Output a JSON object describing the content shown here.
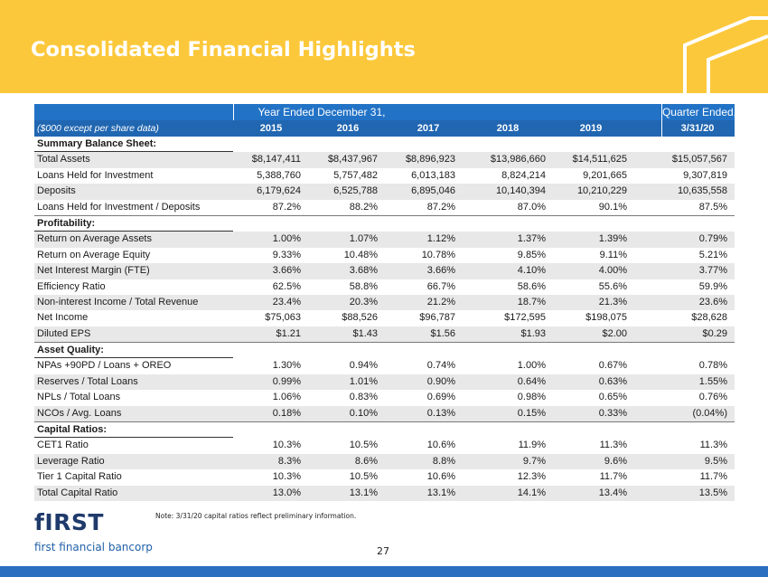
{
  "title": "Consolidated Financial Highlights",
  "table": {
    "group_headers": {
      "years": "Year Ended December 31,",
      "quarter": "Quarter Ended,"
    },
    "subheader": "($000 except per share data)",
    "columns": [
      "2015",
      "2016",
      "2017",
      "2018",
      "2019",
      "3/31/20"
    ],
    "rows": [
      {
        "label": "Summary Balance Sheet:",
        "section": true
      },
      {
        "label": "Total Assets",
        "values": [
          "$8,147,411",
          "$8,437,967",
          "$8,896,923",
          "$13,986,660",
          "$14,511,625",
          "$15,057,567"
        ]
      },
      {
        "label": "Loans Held for Investment",
        "values": [
          "5,388,760",
          "5,757,482",
          "6,013,183",
          "8,824,214",
          "9,201,665",
          "9,307,819"
        ]
      },
      {
        "label": "Deposits",
        "values": [
          "6,179,624",
          "6,525,788",
          "6,895,046",
          "10,140,394",
          "10,210,229",
          "10,635,558"
        ]
      },
      {
        "label": "Loans Held for Investment / Deposits",
        "values": [
          "87.2%",
          "88.2%",
          "87.2%",
          "87.0%",
          "90.1%",
          "87.5%"
        ]
      },
      {
        "label": "Profitability:",
        "section": true
      },
      {
        "label": "Return on Average Assets",
        "values": [
          "1.00%",
          "1.07%",
          "1.12%",
          "1.37%",
          "1.39%",
          "0.79%"
        ]
      },
      {
        "label": "Return on Average Equity",
        "values": [
          "9.33%",
          "10.48%",
          "10.78%",
          "9.85%",
          "9.11%",
          "5.21%"
        ]
      },
      {
        "label": "Net Interest Margin (FTE)",
        "values": [
          "3.66%",
          "3.68%",
          "3.66%",
          "4.10%",
          "4.00%",
          "3.77%"
        ]
      },
      {
        "label": "Efficiency Ratio",
        "values": [
          "62.5%",
          "58.8%",
          "66.7%",
          "58.6%",
          "55.6%",
          "59.9%"
        ]
      },
      {
        "label": "Non-interest Income / Total Revenue",
        "values": [
          "23.4%",
          "20.3%",
          "21.2%",
          "18.7%",
          "21.3%",
          "23.6%"
        ]
      },
      {
        "label": "Net Income",
        "values": [
          "$75,063",
          "$88,526",
          "$96,787",
          "$172,595",
          "$198,075",
          "$28,628"
        ]
      },
      {
        "label": "Diluted EPS",
        "values": [
          "$1.21",
          "$1.43",
          "$1.56",
          "$1.93",
          "$2.00",
          "$0.29"
        ]
      },
      {
        "label": "Asset Quality:",
        "section": true
      },
      {
        "label": "NPAs +90PD / Loans + OREO",
        "values": [
          "1.30%",
          "0.94%",
          "0.74%",
          "1.00%",
          "0.67%",
          "0.78%"
        ]
      },
      {
        "label": "Reserves / Total Loans",
        "values": [
          "0.99%",
          "1.01%",
          "0.90%",
          "0.64%",
          "0.63%",
          "1.55%"
        ]
      },
      {
        "label": "NPLs / Total Loans",
        "values": [
          "1.06%",
          "0.83%",
          "0.69%",
          "0.98%",
          "0.65%",
          "0.76%"
        ]
      },
      {
        "label": "NCOs / Avg. Loans",
        "values": [
          "0.18%",
          "0.10%",
          "0.13%",
          "0.15%",
          "0.33%",
          "(0.04%)"
        ]
      },
      {
        "label": "Capital Ratios:",
        "section": true
      },
      {
        "label": "CET1 Ratio",
        "values": [
          "10.3%",
          "10.5%",
          "10.6%",
          "11.9%",
          "11.3%",
          "11.3%"
        ]
      },
      {
        "label": "Leverage Ratio",
        "values": [
          "8.3%",
          "8.6%",
          "8.8%",
          "9.7%",
          "9.6%",
          "9.5%"
        ]
      },
      {
        "label": "Tier 1 Capital Ratio",
        "values": [
          "10.3%",
          "10.5%",
          "10.6%",
          "12.3%",
          "11.7%",
          "11.7%"
        ]
      },
      {
        "label": "Total Capital Ratio",
        "values": [
          "13.0%",
          "13.1%",
          "13.1%",
          "14.1%",
          "13.4%",
          "13.5%"
        ]
      }
    ]
  },
  "note": "Note: 3/31/20 capital ratios reflect preliminary information.",
  "logo": {
    "wordmark": "fIRST",
    "tagline": "first financial bancorp"
  },
  "page_number": "27",
  "colors": {
    "banner": "#fcc83b",
    "header_blue": "#2272c6",
    "footer_blue": "#2b6fc0",
    "logo_navy": "#1f3a6b"
  }
}
